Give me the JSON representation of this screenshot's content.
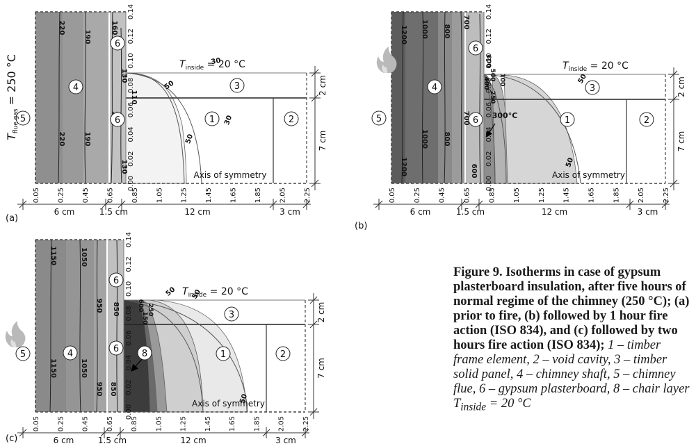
{
  "caption": {
    "bold": "Figure 9. Isotherms in case of gypsum plasterboard insulation, after five hours of normal regime of the chimney (250 °C); (a) prior to fire, (b) followed by 1 hour fire action (ISO 834), and (c) followed by two hours fire action (ISO 834);",
    "italic": "1 – timber frame element, 2 – void cavity, 3 – timber solid panel, 4 – chimney shaft, 5 – chimney flue, 6 – gypsum plasterboard, 8 – chair layer T",
    "italic_sub": "inside",
    "italic_tail": " = 20 °C"
  },
  "common": {
    "x_ticks": [
      "0.05",
      "0.25",
      "0.45",
      "0.65",
      "0.85",
      "1.05",
      "1.25",
      "1.45",
      "1.65",
      "1.85",
      "2.05",
      "2.25"
    ],
    "y_ticks": [
      "0.00",
      "0.02",
      "0.04",
      "0.06",
      "0.08",
      "0.10",
      "0.12",
      "0.14"
    ],
    "dims_bottom": [
      "6 cm",
      "1.5 cm",
      "12 cm",
      "3 cm"
    ],
    "dims_right": [
      "2 cm",
      "7 cm"
    ],
    "t_inside_sym": "T",
    "t_inside_sub": "inside",
    "t_inside_val": " = 20 °C",
    "axis_of_symmetry": "Axis of symmetry",
    "markers": {
      "m1": "1",
      "m2": "2",
      "m3": "3",
      "m4": "4",
      "m5": "5",
      "m6": "6",
      "m8": "8"
    }
  },
  "panel_a": {
    "letter": "(a)",
    "flue_sym": "T",
    "flue_sub": "flue gas",
    "flue_val": " = 250 °C",
    "labels": [
      "220",
      "220",
      "190",
      "190",
      "160",
      "160",
      "130",
      "130",
      "110",
      "50",
      "30",
      "50",
      "30"
    ]
  },
  "panel_b": {
    "letter": "(b)",
    "labels": [
      "1200",
      "1200",
      "1000",
      "1000",
      "800",
      "800",
      "700",
      "700",
      "600",
      "500",
      "400",
      "250",
      "100",
      "50",
      "50",
      "300°C",
      "600"
    ]
  },
  "panel_c": {
    "letter": "(c)",
    "labels": [
      "1150",
      "1150",
      "1050",
      "1050",
      "950",
      "950",
      "850",
      "850",
      "50",
      "50",
      "50",
      "150",
      "250",
      "600"
    ]
  }
}
